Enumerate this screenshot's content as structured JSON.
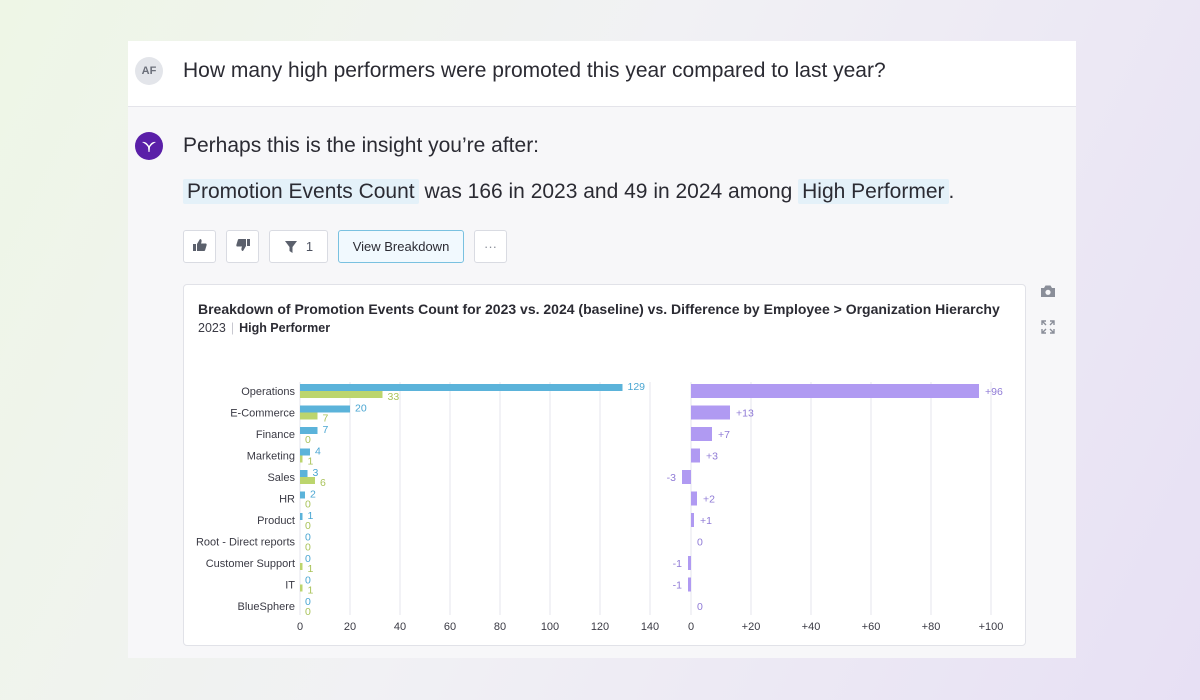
{
  "question": {
    "avatar_initials": "AF",
    "text": "How many high performers were promoted this year compared to last year?"
  },
  "answer": {
    "intro": "Perhaps this is the insight you’re after:",
    "metric": "Promotion Events Count",
    "text_a": "was 166 in 2023 and 49 in 2024 among",
    "segment": "High Performer",
    "text_end": "."
  },
  "actions": {
    "filter_count": "1",
    "view_breakdown": "View Breakdown",
    "more": "···"
  },
  "icons": [
    "thumbs-up-icon",
    "thumbs-down-icon",
    "filter-icon",
    "more-icon",
    "camera-icon",
    "expand-icon"
  ],
  "colors": {
    "series_2023": "#5bb3da",
    "series_2024": "#bcd56d",
    "difference": "#b09af2",
    "label_2023": "#4aa6d2",
    "label_2024": "#a9c35a"
  },
  "chart": {
    "title": "Breakdown of Promotion Events Count for 2023 vs. 2024 (baseline) vs. Difference by Employee > Organization Hierarchy",
    "subtitle_year": "2023",
    "subtitle_segment": "High Performer"
  },
  "chart_data": [
    {
      "type": "bar",
      "orientation": "horizontal",
      "categories": [
        "Operations",
        "E-Commerce",
        "Finance",
        "Marketing",
        "Sales",
        "HR",
        "Product",
        "Root - Direct reports",
        "Customer Support",
        "IT",
        "BlueSphere"
      ],
      "series": [
        {
          "values": [
            129,
            20,
            7,
            4,
            3,
            2,
            1,
            0,
            0,
            0,
            0
          ]
        },
        {
          "values": [
            33,
            7,
            0,
            1,
            6,
            0,
            0,
            0,
            1,
            1,
            0
          ]
        }
      ],
      "xlim": [
        0,
        140
      ],
      "xticks": [
        "0",
        "20",
        "40",
        "60",
        "80",
        "100",
        "120",
        "140"
      ],
      "grid": true
    },
    {
      "type": "bar",
      "orientation": "horizontal",
      "categories": [
        "Operations",
        "E-Commerce",
        "Finance",
        "Marketing",
        "Sales",
        "HR",
        "Product",
        "Root - Direct reports",
        "Customer Support",
        "IT",
        "BlueSphere"
      ],
      "series": [
        {
          "values": [
            96,
            13,
            7,
            3,
            -3,
            2,
            1,
            0,
            -1,
            -1,
            0
          ],
          "labels": [
            "+96",
            "+13",
            "+7",
            "+3",
            "-3",
            "+2",
            "+1",
            "0",
            "-1",
            "-1",
            "0"
          ]
        }
      ],
      "xlim": [
        0,
        100
      ],
      "xticks": [
        "0",
        "+20",
        "+40",
        "+60",
        "+80",
        "+100"
      ],
      "grid": true
    }
  ]
}
